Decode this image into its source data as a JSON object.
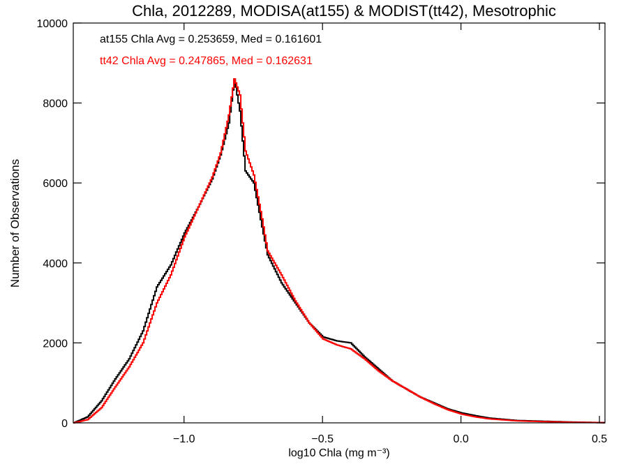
{
  "chart_data": {
    "type": "line",
    "title": "Chla, 2012289, MODISA(at155) & MODIST(tt42), Mesotrophic",
    "xlabel": "log10 Chla (mg m⁻³)",
    "ylabel": "Number of Observations",
    "xlim": [
      -1.4,
      0.52
    ],
    "ylim": [
      0,
      10000
    ],
    "x_ticks": [
      {
        "value": -1.0,
        "label": "−1.0"
      },
      {
        "value": -0.5,
        "label": "−0.5"
      },
      {
        "value": 0.0,
        "label": "0.0"
      },
      {
        "value": 0.5,
        "label": "0.5"
      }
    ],
    "y_ticks": [
      {
        "value": 0,
        "label": "0"
      },
      {
        "value": 2000,
        "label": "2000"
      },
      {
        "value": 4000,
        "label": "4000"
      },
      {
        "value": 6000,
        "label": "6000"
      },
      {
        "value": 8000,
        "label": "8000"
      },
      {
        "value": 10000,
        "label": "10000"
      }
    ],
    "annotations": [
      {
        "text": "at155 Chla Avg = 0.253659, Med = 0.161601",
        "color": "#000000"
      },
      {
        "text": "tt42 Chla Avg = 0.247865, Med = 0.162631",
        "color": "#ff0000"
      }
    ],
    "grid": false,
    "series": [
      {
        "color": "#000000",
        "x": [
          -1.4,
          -1.35,
          -1.3,
          -1.25,
          -1.2,
          -1.15,
          -1.1,
          -1.05,
          -1.0,
          -0.95,
          -0.9,
          -0.87,
          -0.84,
          -0.82,
          -0.8,
          -0.78,
          -0.75,
          -0.72,
          -0.7,
          -0.65,
          -0.6,
          -0.55,
          -0.5,
          -0.45,
          -0.4,
          -0.35,
          -0.3,
          -0.25,
          -0.2,
          -0.15,
          -0.1,
          -0.05,
          0.0,
          0.05,
          0.1,
          0.2,
          0.3,
          0.4,
          0.52
        ],
        "y": [
          0,
          150,
          550,
          1100,
          1600,
          2300,
          3400,
          3950,
          4750,
          5400,
          6100,
          6700,
          7500,
          8600,
          7800,
          6300,
          6000,
          4900,
          4200,
          3500,
          3000,
          2500,
          2150,
          2050,
          2000,
          1650,
          1350,
          1050,
          850,
          650,
          500,
          350,
          250,
          180,
          120,
          60,
          40,
          20,
          5
        ]
      },
      {
        "color": "#ff0000",
        "x": [
          -1.4,
          -1.35,
          -1.3,
          -1.25,
          -1.2,
          -1.15,
          -1.1,
          -1.05,
          -1.0,
          -0.95,
          -0.9,
          -0.87,
          -0.84,
          -0.82,
          -0.8,
          -0.78,
          -0.75,
          -0.72,
          -0.7,
          -0.65,
          -0.6,
          -0.55,
          -0.5,
          -0.45,
          -0.4,
          -0.35,
          -0.3,
          -0.25,
          -0.2,
          -0.15,
          -0.1,
          -0.05,
          0.0,
          0.05,
          0.1,
          0.2,
          0.3,
          0.4,
          0.52
        ],
        "y": [
          0,
          80,
          380,
          900,
          1400,
          2000,
          3000,
          3700,
          4650,
          5400,
          6150,
          6750,
          7700,
          8600,
          8200,
          6800,
          6200,
          5100,
          4300,
          3700,
          3050,
          2500,
          2100,
          1950,
          1850,
          1600,
          1300,
          1050,
          850,
          650,
          480,
          330,
          220,
          150,
          100,
          50,
          30,
          15,
          5
        ]
      }
    ]
  }
}
